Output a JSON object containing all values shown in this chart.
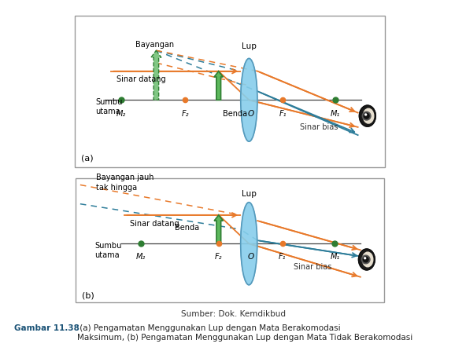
{
  "fig_width": 5.92,
  "fig_height": 4.47,
  "bg_color": "#ffffff",
  "title_color": "#1a5276",
  "caption": "Sumber: Dok. Kemdikbud",
  "figure_label": "Gambar 11.38",
  "figure_caption": " (a) Pengamatan Menggunakan Lup dengan Mata Berakomodasi\nMaksimum, (b) Pengamatan Menggunakan Lup dengan Mata Tidak Berakomodasi",
  "panel_a_label": "(a)",
  "panel_b_label": "(b)",
  "orange_color": "#E8792A",
  "blue_color": "#2E7D9A",
  "green_dark": "#2E7D32",
  "green_light": "#81C784",
  "lens_color": "#87CEEB",
  "lens_edge": "#5599bb",
  "axis_color": "#444444",
  "pt_orange": "#E8792A",
  "pt_green": "#2E7D32",
  "labels_a": {
    "lup": "Lup",
    "bayangan": "Bayangan",
    "sinar_datang": "Sinar datang",
    "sumbu": "Sumbu\nutama",
    "benda": "Benda",
    "sinar_bias": "Sinar bias",
    "F2": "F₂",
    "F1": "F₁",
    "M2": "M₂",
    "M1": "M₁",
    "O": "O"
  },
  "labels_b": {
    "lup": "Lup",
    "bayangan": "Bayangan jauh\ntak hingga",
    "sinar_datang": "Sinar datang",
    "sumbu": "Sumbu\nutama",
    "benda": "Benda",
    "sinar_bias": "Sinar bias",
    "F2": "F₂",
    "F1": "F₁",
    "M2": "M₂",
    "M1": "M₁",
    "O": "O"
  }
}
